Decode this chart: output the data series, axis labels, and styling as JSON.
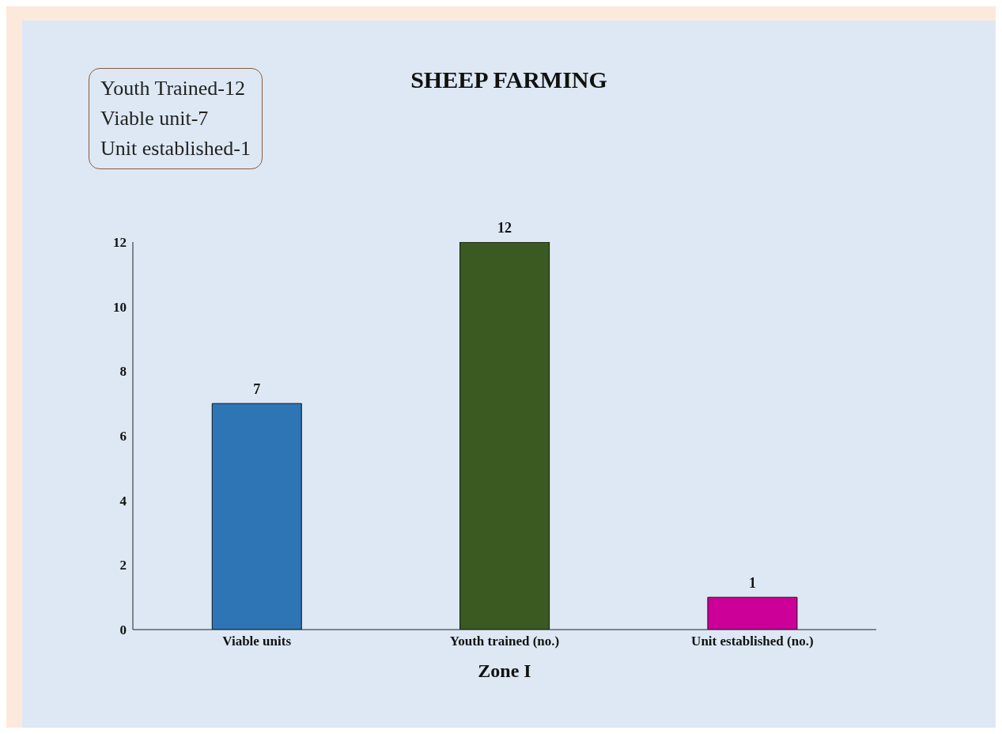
{
  "chart_data": {
    "type": "bar",
    "title": "SHEEP FARMING",
    "xlabel": "Zone I",
    "categories": [
      "Viable units",
      "Youth trained (no.)",
      "Unit established (no.)"
    ],
    "values": [
      7,
      12,
      1
    ],
    "colors": [
      "#2e75b6",
      "#3a5a22",
      "#cc0099"
    ],
    "ylim": [
      0,
      12
    ],
    "yticks": [
      0,
      2,
      4,
      6,
      8,
      10,
      12
    ],
    "data_labels": true,
    "grid": false,
    "legend": false,
    "annotations": [
      "Youth Trained-12",
      "Viable unit-7",
      "Unit established-1"
    ]
  }
}
